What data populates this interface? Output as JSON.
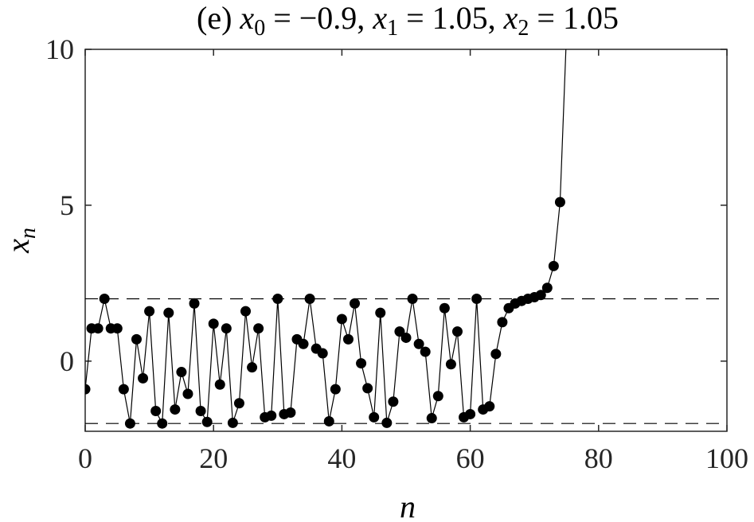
{
  "chart_data": {
    "type": "line",
    "title": "(e) x_0 = −0.9, x_1 = 1.05, x_2 = 1.05",
    "title_parts": {
      "prefix": "(e) ",
      "v0": "x",
      "s0": "0",
      "eq0": " = −0.9, ",
      "v1": "x",
      "s1": "1",
      "eq1": " = 1.05, ",
      "v2": "x",
      "s2": "2",
      "eq2": " = 1.05"
    },
    "xlabel": "n",
    "ylabel_var": "x",
    "ylabel_sub": "n",
    "xlim": [
      0,
      100
    ],
    "ylim": [
      -2.25,
      10
    ],
    "xticks": [
      0,
      20,
      40,
      60,
      80,
      100
    ],
    "yticks": [
      0,
      5,
      10
    ],
    "grid": false,
    "reference_lines": [
      2,
      -2
    ],
    "line_color": "#000000",
    "marker_color": "#000000",
    "series": [
      {
        "x": [
          0,
          1,
          2,
          3,
          4,
          5,
          6,
          7,
          8,
          9,
          10,
          11,
          12,
          13,
          14,
          15,
          16,
          17,
          18,
          19,
          20,
          21,
          22,
          23,
          24,
          25,
          26,
          27,
          28,
          29,
          30,
          31,
          32,
          33,
          34,
          35,
          36,
          37,
          38,
          39,
          40,
          41,
          42,
          43,
          44,
          45,
          46,
          47,
          48,
          49,
          50,
          51,
          52,
          53,
          54,
          55,
          56,
          57,
          58,
          59,
          60,
          61,
          62,
          63,
          64,
          65,
          66,
          67,
          68,
          69,
          70,
          71,
          72,
          73,
          74,
          75
        ],
        "y": [
          -0.9,
          1.05,
          1.05,
          2.0,
          1.05,
          1.05,
          -0.9,
          -2.0,
          0.7,
          -0.55,
          1.6,
          -1.6,
          -2.0,
          1.55,
          -1.55,
          -0.35,
          -1.05,
          1.85,
          -1.6,
          -1.95,
          1.2,
          -0.75,
          1.05,
          -1.98,
          -1.35,
          1.6,
          -0.2,
          1.05,
          -1.8,
          -1.75,
          2.0,
          -1.7,
          -1.65,
          0.7,
          0.55,
          2.0,
          0.4,
          0.25,
          -1.93,
          -0.9,
          1.35,
          0.7,
          1.85,
          -0.07,
          -0.87,
          -1.8,
          1.55,
          -1.98,
          -1.3,
          0.95,
          0.75,
          2.0,
          0.55,
          0.3,
          -1.83,
          -1.12,
          1.7,
          -0.1,
          0.95,
          -1.8,
          -1.7,
          2.0,
          -1.55,
          -1.45,
          0.23,
          1.25,
          1.7,
          1.85,
          1.93,
          2.0,
          2.05,
          2.12,
          2.35,
          3.05,
          5.1,
          10.5
        ]
      }
    ]
  }
}
